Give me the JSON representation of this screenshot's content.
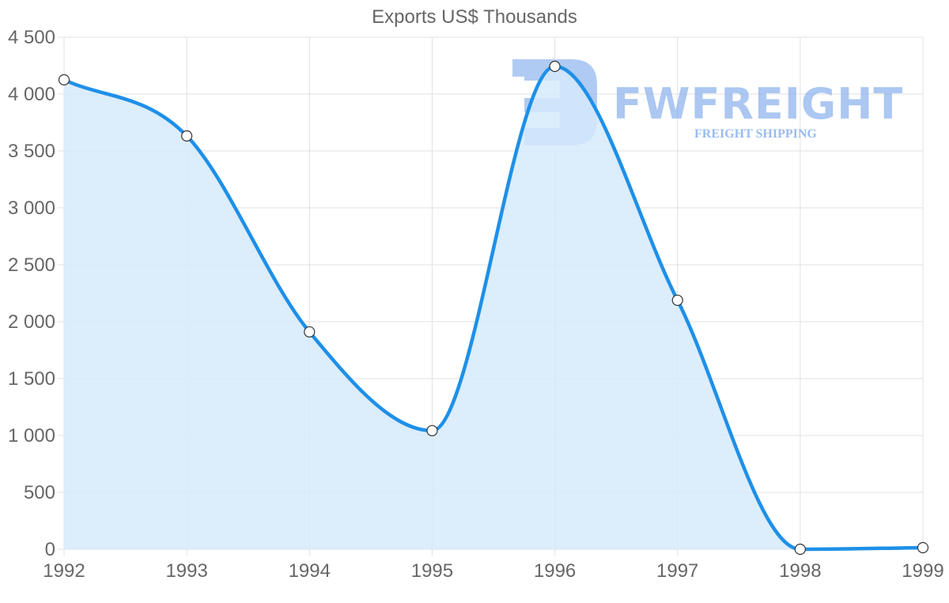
{
  "chart_data": {
    "type": "area",
    "title": "Exports US$ Thousands",
    "xlabel": "",
    "ylabel": "",
    "categories": [
      "1992",
      "1993",
      "1994",
      "1995",
      "1996",
      "1997",
      "1998",
      "1999"
    ],
    "series": [
      {
        "name": "Exports US$ Thousands",
        "values": [
          4125,
          3632,
          1910,
          1042,
          4243,
          2188,
          0,
          14
        ]
      }
    ],
    "ylim": [
      0,
      4500
    ],
    "yticks": [
      0,
      500,
      1000,
      1500,
      2000,
      2500,
      3000,
      3500,
      4000,
      4500
    ],
    "ytick_labels": [
      "0",
      "500",
      "1 000",
      "1 500",
      "2 000",
      "2 500",
      "3 000",
      "3 500",
      "4 000",
      "4 500"
    ],
    "grid": true,
    "legend": "none",
    "colors": {
      "line": "#1e90e8",
      "fill": "#d6eafc",
      "grid": "#e0e0e0",
      "text": "#666666"
    }
  },
  "watermark": {
    "brand": "FWFREIGHT",
    "tagline": "FREIGHT SHIPPING"
  }
}
